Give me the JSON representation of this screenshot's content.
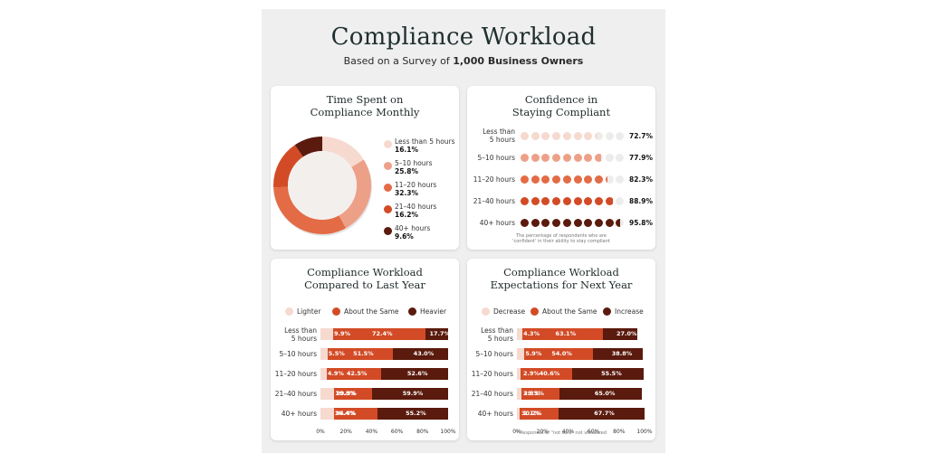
{
  "title": "Compliance Workload",
  "subtitle_prefix": "Based on a Survey of",
  "subtitle_bold": "1,000 Business Owners",
  "colors": {
    "c1": "#f6d9cf",
    "c2": "#eda088",
    "c3": "#e36b45",
    "c4": "#d24b26",
    "c5": "#5a1a0d",
    "empty": "#ececec"
  },
  "chart_data": [
    {
      "type": "pie",
      "title": [
        "Time Spent on",
        "Compliance Monthly"
      ],
      "categories": [
        "Less than 5 hours",
        "5–10 hours",
        "11–20 hours",
        "21–40 hours",
        "40+ hours"
      ],
      "values": [
        16.1,
        25.8,
        32.3,
        16.2,
        9.6
      ],
      "value_labels": [
        "16.1%",
        "25.8%",
        "32.3%",
        "16.2%",
        "9.6%"
      ],
      "legend": "right"
    },
    {
      "type": "bar",
      "title": [
        "Confidence in",
        "Staying Compliant"
      ],
      "categories": [
        "Less than 5 hours",
        "5–10 hours",
        "11–20 hours",
        "21–40 hours",
        "40+ hours"
      ],
      "category_lines": [
        [
          "Less than",
          "5 hours"
        ],
        [
          "5–10 hours"
        ],
        [
          "11–20 hours"
        ],
        [
          "21–40 hours"
        ],
        [
          "40+ hours"
        ]
      ],
      "values": [
        72.7,
        77.9,
        82.3,
        88.9,
        95.8
      ],
      "value_labels": [
        "72.7%",
        "77.9%",
        "82.3%",
        "88.9%",
        "95.8%"
      ],
      "footnote": [
        "The percentage of respondents who are",
        "'confident' in their ability to stay compliant"
      ]
    },
    {
      "type": "bar",
      "stacked": true,
      "orientation": "horizontal",
      "title": [
        "Compliance Workload",
        "Compared to Last Year"
      ],
      "categories": [
        "Less than 5 hours",
        "5–10 hours",
        "11–20 hours",
        "21–40 hours",
        "40+ hours"
      ],
      "category_lines": [
        [
          "Less than",
          "5 hours"
        ],
        [
          "5–10 hours"
        ],
        [
          "11–20 hours"
        ],
        [
          "21–40 hours"
        ],
        [
          "40+ hours"
        ]
      ],
      "series": [
        {
          "name": "Lighter",
          "values": [
            9.9,
            5.5,
            4.9,
            10.8,
            10.4
          ],
          "labels": [
            "9.9%",
            "5.5%",
            "4.9%",
            "10.8%",
            "10.4%"
          ]
        },
        {
          "name": "About the Same",
          "values": [
            72.4,
            51.5,
            42.5,
            29.3,
            34.4
          ],
          "labels": [
            "72.4%",
            "51.5%",
            "42.5%",
            "29.3%",
            "34.4%"
          ]
        },
        {
          "name": "Heavier",
          "values": [
            17.7,
            43.0,
            52.6,
            59.9,
            55.2
          ],
          "labels": [
            "17.7%",
            "43.0%",
            "52.6%",
            "59.9%",
            "55.2%"
          ]
        }
      ],
      "xticks": [
        "0%",
        "20%",
        "40%",
        "60%",
        "80%",
        "100%"
      ],
      "xlim": [
        0,
        100
      ],
      "legend": "top"
    },
    {
      "type": "bar",
      "stacked": true,
      "orientation": "horizontal",
      "title": [
        "Compliance Workload",
        "Expectations for Next Year"
      ],
      "categories": [
        "Less than 5 hours",
        "5–10 hours",
        "11–20 hours",
        "21–40 hours",
        "40+ hours"
      ],
      "category_lines": [
        [
          "Less than",
          "5 hours"
        ],
        [
          "5–10 hours"
        ],
        [
          "11–20 hours"
        ],
        [
          "21–40 hours"
        ],
        [
          "40+ hours"
        ]
      ],
      "series": [
        {
          "name": "Decrease",
          "values": [
            4.3,
            5.9,
            2.9,
            3.8,
            2.1
          ],
          "labels": [
            "4.3%",
            "5.9%",
            "2.9%",
            "3.8%",
            "2.1%"
          ]
        },
        {
          "name": "About the Same",
          "values": [
            63.1,
            54.0,
            40.6,
            29.3,
            30.2
          ],
          "labels": [
            "63.1%",
            "54.0%",
            "40.6%",
            "29.3%",
            "30.2%"
          ]
        },
        {
          "name": "Increase",
          "values": [
            27.0,
            38.8,
            55.5,
            65.0,
            67.7
          ],
          "labels": [
            "27.0%",
            "38.8%",
            "55.5%",
            "65.0%",
            "67.7%"
          ]
        }
      ],
      "xticks": [
        "0%",
        "20%",
        "40%",
        "60%",
        "80%",
        "100%"
      ],
      "xlim": [
        0,
        100
      ],
      "legend": "top",
      "footnote": "* Responses of \"not sure\" not visualized"
    }
  ]
}
